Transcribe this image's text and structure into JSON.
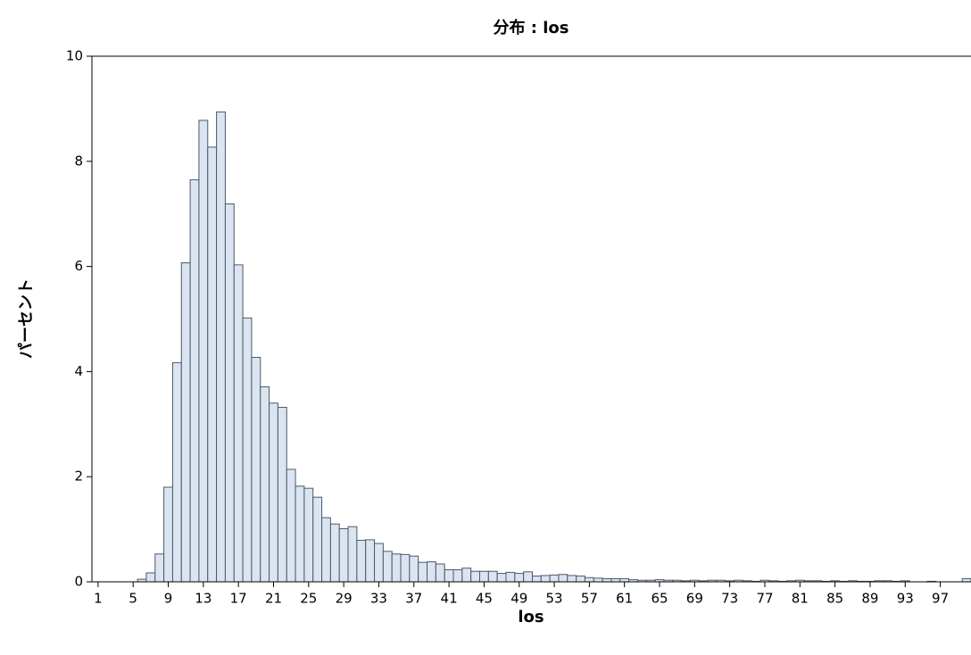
{
  "chart_data": {
    "type": "histogram",
    "title": "分布 : los",
    "xlabel": "los",
    "ylabel": "パーセント",
    "bins": [
      5.5,
      6.5,
      7.5,
      8.5,
      9.5,
      10.5,
      11.5,
      12.5,
      13.5,
      14.5,
      15.5,
      16.5,
      17.5,
      18.5,
      19.5,
      20.5,
      21.5,
      22.5,
      23.5,
      24.5,
      25.5,
      26.5,
      27.5,
      28.5,
      29.5,
      30.5,
      31.5,
      32.5,
      33.5,
      34.5,
      35.5,
      36.5,
      37.5,
      38.5,
      39.5,
      40.5,
      41.5,
      42.5,
      43.5,
      44.5,
      45.5,
      46.5,
      47.5,
      48.5,
      49.5,
      50.5,
      51.5,
      52.5,
      53.5,
      54.5,
      55.5,
      56.5,
      57.5,
      58.5,
      59.5,
      60.5,
      61.5,
      62.5,
      63.5,
      64.5,
      65.5,
      66.5,
      67.5,
      68.5,
      69.5,
      70.5,
      71.5,
      72.5,
      73.5,
      74.5,
      75.5,
      76.5,
      77.5,
      78.5,
      79.5,
      80.5,
      81.5,
      82.5,
      83.5,
      84.5,
      85.5,
      86.5,
      87.5,
      88.5,
      89.5,
      90.5,
      91.5,
      92.5,
      93.5,
      94.5,
      95.5,
      96.5,
      97.5,
      98.5,
      99.5,
      100.5
    ],
    "values": [
      0.05,
      0.17,
      0.53,
      1.8,
      4.17,
      6.07,
      7.65,
      8.78,
      8.27,
      8.94,
      7.19,
      6.03,
      5.02,
      4.27,
      3.71,
      3.4,
      3.32,
      2.14,
      1.82,
      1.78,
      1.61,
      1.22,
      1.1,
      1.01,
      1.05,
      0.79,
      0.8,
      0.73,
      0.58,
      0.53,
      0.52,
      0.49,
      0.37,
      0.38,
      0.34,
      0.23,
      0.23,
      0.26,
      0.2,
      0.2,
      0.2,
      0.16,
      0.18,
      0.16,
      0.19,
      0.11,
      0.12,
      0.13,
      0.14,
      0.12,
      0.11,
      0.08,
      0.07,
      0.06,
      0.06,
      0.06,
      0.04,
      0.03,
      0.03,
      0.04,
      0.03,
      0.03,
      0.02,
      0.03,
      0.02,
      0.03,
      0.03,
      0.02,
      0.03,
      0.02,
      0.01,
      0.03,
      0.02,
      0.01,
      0.02,
      0.03,
      0.02,
      0.02,
      0.01,
      0.02,
      0.01,
      0.02,
      0.01,
      0.01,
      0.02,
      0.02,
      0.01,
      0.02,
      0,
      0,
      0.01,
      0,
      0,
      0,
      0.06
    ],
    "color": "#dbe5f1",
    "edgecolor": "#4d5869",
    "xlim": [
      0.3,
      100.5
    ],
    "xticks": [
      1,
      5,
      9,
      13,
      17,
      21,
      25,
      29,
      33,
      37,
      41,
      45,
      49,
      53,
      57,
      61,
      65,
      69,
      73,
      77,
      81,
      85,
      89,
      93,
      97
    ],
    "ylim": [
      0,
      10
    ],
    "yticks": [
      0,
      2,
      4,
      6,
      8,
      10
    ]
  }
}
